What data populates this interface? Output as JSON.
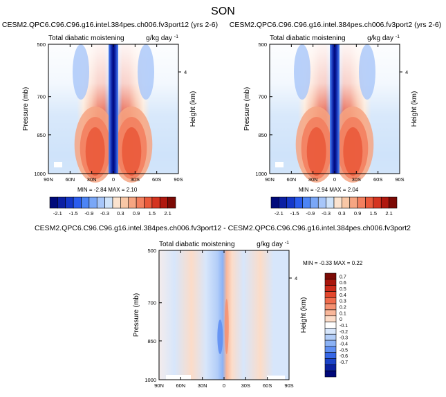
{
  "page": {
    "title": "SON"
  },
  "colors": {
    "background_fill": "#cfe3fa",
    "frame": "#000000"
  },
  "chart_data": [
    {
      "type": "heatmap",
      "title": "CESM2.QPC6.C96.C96.g16.intel.384pes.ch006.fv3port12 (yrs 2-6)",
      "left_label": "Total diabatic moistening",
      "right_label": "g/kg day",
      "right_label_exp": "-1",
      "ylabel": "Pressure (mb)",
      "y2label": "Height (km)",
      "x_ticks": [
        "90N",
        "60N",
        "30N",
        "0",
        "30S",
        "60S",
        "90S"
      ],
      "y_ticks": [
        "500",
        "700",
        "850",
        "1000"
      ],
      "y_values": [
        500,
        700,
        850,
        1000
      ],
      "y2_ticks": [
        "4"
      ],
      "min_label": "MIN =",
      "min": "-2.84",
      "max_label": "MAX =",
      "max": "2.10",
      "colorbar_labels": [
        "-2.1",
        "-1.5",
        "-0.9",
        "-0.3",
        "0.3",
        "0.9",
        "1.5",
        "2.1"
      ],
      "colorbar_colors": [
        "#000a7a",
        "#0b1fa3",
        "#1437c9",
        "#2a5cee",
        "#4d85f5",
        "#7aa7f7",
        "#a7c6f9",
        "#cfe3fa",
        "#fbe3cf",
        "#f8c7a6",
        "#f6a582",
        "#f3805f",
        "#ea5a3b",
        "#d43420",
        "#b0180f",
        "#7c0a05"
      ]
    },
    {
      "type": "heatmap",
      "title": "CESM2.QPC6.C96.C96.g16.intel.384pes.ch006.fv3port2 (yrs 2-6)",
      "left_label": "Total diabatic moistening",
      "right_label": "g/kg day",
      "right_label_exp": "-1",
      "ylabel": "Pressure (mb)",
      "y2label": "Height (km)",
      "x_ticks": [
        "90N",
        "60N",
        "30N",
        "0",
        "30S",
        "60S",
        "90S"
      ],
      "y_ticks": [
        "500",
        "700",
        "850",
        "1000"
      ],
      "y_values": [
        500,
        700,
        850,
        1000
      ],
      "y2_ticks": [
        "4"
      ],
      "min_label": "MIN =",
      "min": "-2.94",
      "max_label": "MAX =",
      "max": "2.04",
      "colorbar_labels": [
        "-2.1",
        "-1.5",
        "-0.9",
        "-0.3",
        "0.3",
        "0.9",
        "1.5",
        "2.1"
      ],
      "colorbar_colors": [
        "#000a7a",
        "#0b1fa3",
        "#1437c9",
        "#2a5cee",
        "#4d85f5",
        "#7aa7f7",
        "#a7c6f9",
        "#cfe3fa",
        "#fbe3cf",
        "#f8c7a6",
        "#f6a582",
        "#f3805f",
        "#ea5a3b",
        "#d43420",
        "#b0180f",
        "#7c0a05"
      ]
    },
    {
      "type": "heatmap",
      "title": "CESM2.QPC6.C96.C96.g16.intel.384pes.ch006.fv3port12 - CESM2.QPC6.C96.C96.g16.intel.384pes.ch006.fv3port2",
      "left_label": "Total diabatic moistening",
      "right_label": "g/kg day",
      "right_label_exp": "-1",
      "ylabel": "Pressure (mb)",
      "y2label": "Height (km)",
      "x_ticks": [
        "90N",
        "60N",
        "30N",
        "0",
        "30S",
        "60S",
        "90S"
      ],
      "y_ticks": [
        "500",
        "700",
        "850",
        "1000"
      ],
      "y_values": [
        500,
        700,
        850,
        1000
      ],
      "y2_ticks": [
        "4"
      ],
      "min_label": "MIN =",
      "min": "-0.33",
      "max_label": "MAX =",
      "max": "0.22",
      "colorbar_labels": [
        "0.7",
        "0.6",
        "0.5",
        "0.4",
        "0.3",
        "0.2",
        "0.1",
        "0",
        "-0.1",
        "-0.2",
        "-0.3",
        "-0.4",
        "-0.5",
        "-0.6",
        "-0.7"
      ],
      "colorbar_colors": [
        "#7c0a05",
        "#a8150c",
        "#cc2a1a",
        "#e3472d",
        "#ef6b4c",
        "#f59172",
        "#f9b79a",
        "#fcdcc8",
        "#ffffff",
        "#d7e6fb",
        "#b2cdf8",
        "#8bb2f5",
        "#5f8ff2",
        "#3667e6",
        "#1b43c8",
        "#0a21a0",
        "#00087a"
      ]
    }
  ]
}
